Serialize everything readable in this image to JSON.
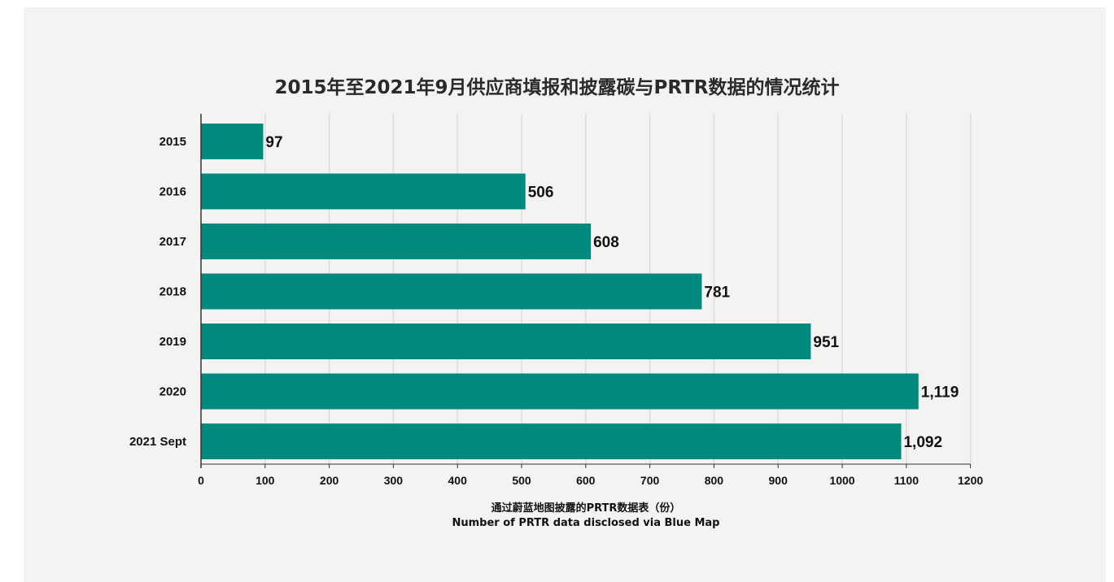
{
  "chart_data": {
    "type": "bar",
    "orientation": "horizontal",
    "title": "2015年至2021年9月供应商填报和披露碳与PRTR数据的情况统计",
    "xlabel_cn": "通过蔚蓝地图披露的PRTR数据表（份）",
    "xlabel_en": "Number of PRTR data disclosed via Blue Map",
    "categories": [
      "2015",
      "2016",
      "2017",
      "2018",
      "2019",
      "2020",
      "2021 Sept"
    ],
    "values": [
      97,
      506,
      608,
      781,
      951,
      1119,
      1092
    ],
    "value_labels": [
      "97",
      "506",
      "608",
      "781",
      "951",
      "1,119",
      "1,092"
    ],
    "xlim": [
      0,
      1200
    ],
    "xticks": [
      "0",
      "100",
      "200",
      "300",
      "400",
      "500",
      "600",
      "700",
      "800",
      "900",
      "1000",
      "1100",
      "1200"
    ],
    "grid": "vertical",
    "bar_color": "#00897f"
  }
}
